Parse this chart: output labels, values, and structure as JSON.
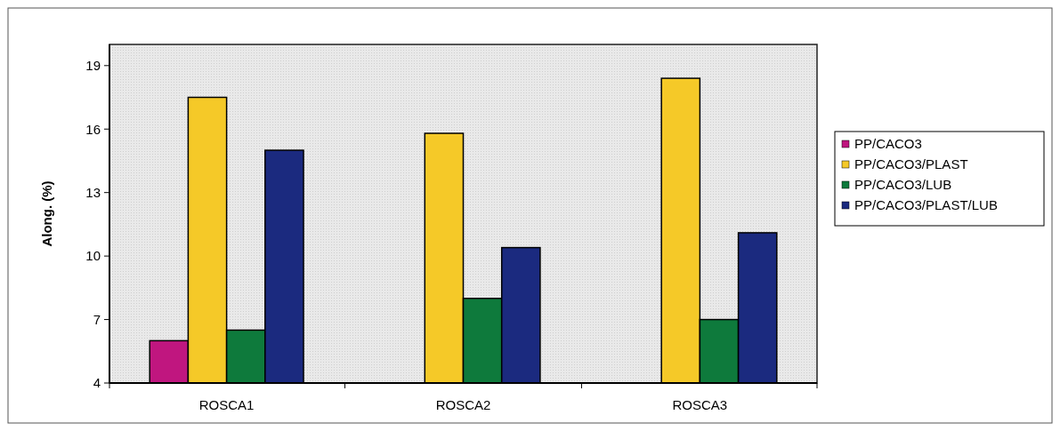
{
  "chart_data": {
    "type": "bar",
    "ylabel": "Along. (%)",
    "categories": [
      "ROSCA1",
      "ROSCA2",
      "ROSCA3"
    ],
    "series": [
      {
        "name": "PP/CACO3",
        "color": "#c0167f",
        "values": [
          6.0,
          null,
          null
        ]
      },
      {
        "name": "PP/CACO3/PLAST",
        "color": "#f5c928",
        "values": [
          17.5,
          15.8,
          18.4
        ]
      },
      {
        "name": "PP/CACO3/LUB",
        "color": "#0e7a3c",
        "values": [
          6.5,
          8.0,
          7.0
        ]
      },
      {
        "name": "PP/CACO3/PLAST/LUB",
        "color": "#1b2a7f",
        "values": [
          15.0,
          10.4,
          11.1
        ]
      }
    ],
    "ylim": [
      4,
      20
    ],
    "yticks": [
      4,
      7,
      10,
      13,
      16,
      19
    ],
    "grid": false,
    "legend": "right"
  }
}
